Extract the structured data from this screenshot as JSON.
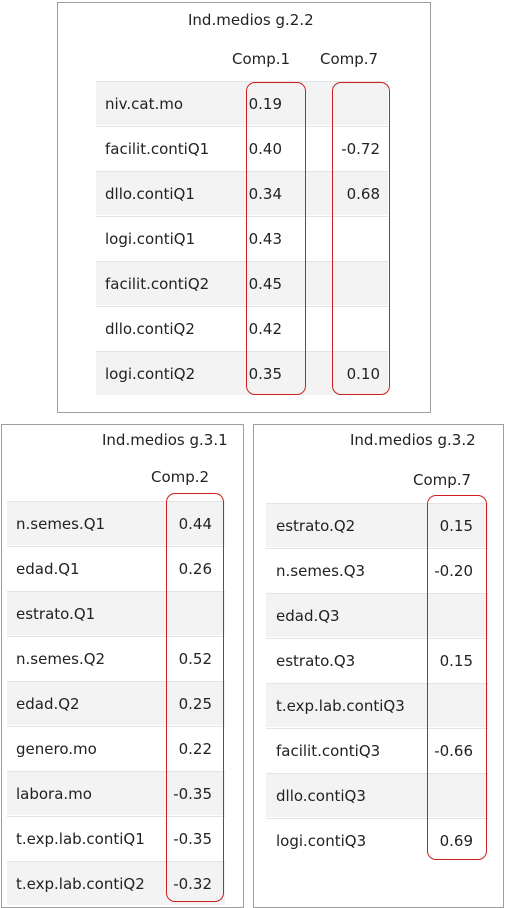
{
  "top": {
    "title": "Ind.medios g.2.2",
    "columns": [
      "Comp.1",
      "Comp.7"
    ],
    "rows": [
      {
        "label": "niv.cat.mo",
        "v1": "0.19",
        "v2": ""
      },
      {
        "label": "facilit.contiQ1",
        "v1": "0.40",
        "v2": "-0.72"
      },
      {
        "label": "dllo.contiQ1",
        "v1": "0.34",
        "v2": "0.68"
      },
      {
        "label": "logi.contiQ1",
        "v1": "0.43",
        "v2": ""
      },
      {
        "label": "facilit.contiQ2",
        "v1": "0.45",
        "v2": ""
      },
      {
        "label": "dllo.contiQ2",
        "v1": "0.42",
        "v2": ""
      },
      {
        "label": "logi.contiQ2",
        "v1": "0.35",
        "v2": "0.10"
      }
    ]
  },
  "left": {
    "title": "Ind.medios g.3.1",
    "columns": [
      "Comp.2"
    ],
    "rows": [
      {
        "label": "n.semes.Q1",
        "v1": "0.44"
      },
      {
        "label": "edad.Q1",
        "v1": "0.26"
      },
      {
        "label": "estrato.Q1",
        "v1": ""
      },
      {
        "label": "n.semes.Q2",
        "v1": "0.52"
      },
      {
        "label": "edad.Q2",
        "v1": "0.25"
      },
      {
        "label": "genero.mo",
        "v1": "0.22"
      },
      {
        "label": "labora.mo",
        "v1": "-0.35"
      },
      {
        "label": "t.exp.lab.contiQ1",
        "v1": "-0.35"
      },
      {
        "label": "t.exp.lab.contiQ2",
        "v1": "-0.32"
      }
    ]
  },
  "right": {
    "title": "Ind.medios g.3.2",
    "columns": [
      "Comp.7"
    ],
    "rows": [
      {
        "label": "estrato.Q2",
        "v1": "0.15"
      },
      {
        "label": "n.semes.Q3",
        "v1": "-0.20"
      },
      {
        "label": "edad.Q3",
        "v1": ""
      },
      {
        "label": "estrato.Q3",
        "v1": "0.15"
      },
      {
        "label": "t.exp.lab.contiQ3",
        "v1": ""
      },
      {
        "label": "facilit.contiQ3",
        "v1": "-0.66"
      },
      {
        "label": "dllo.contiQ3",
        "v1": ""
      },
      {
        "label": "logi.contiQ3",
        "v1": "0.69"
      }
    ]
  },
  "colors": {
    "highlight_border": "#cc1f1f",
    "panel_border": "#9e9e9e",
    "stripe": "#f3f3f3"
  }
}
